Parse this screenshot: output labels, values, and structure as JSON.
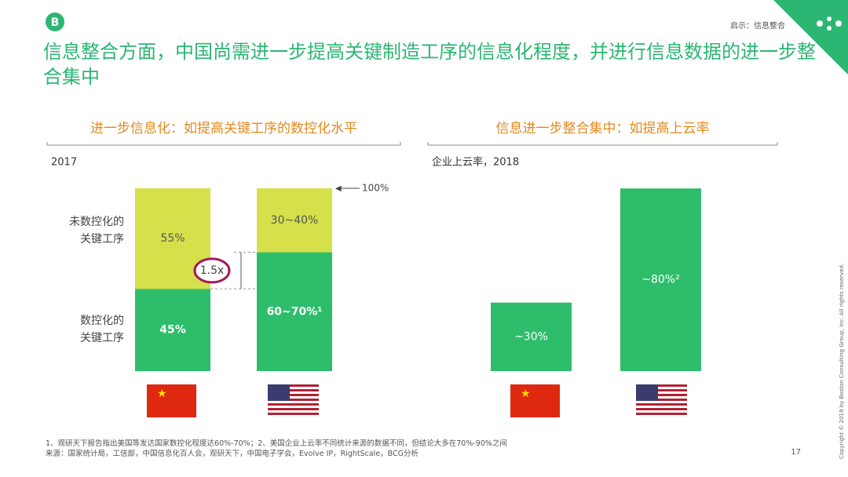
{
  "header": {
    "badge": "B",
    "breadcrumb": "启示：信息整合",
    "title": "信息整合方面，中国尚需进一步提高关键制造工序的信息化程度，并进行信息数据的进一步整合集中"
  },
  "chart_data": [
    {
      "type": "stacked_bar",
      "title": "进一步信息化：如提高关键工序的数控化水平",
      "subtitle": "2017",
      "categories": [
        null,
        null
      ],
      "series": [
        {
          "name": "数控化的\n关键工序",
          "color": "#2ebd6b",
          "values": [
            45,
            65
          ],
          "value_labels": [
            "45%",
            "60~70%¹"
          ]
        },
        {
          "name": "未数控化的\n关键工序",
          "color": "#d6e04a",
          "values": [
            55,
            35
          ],
          "value_labels": [
            "55%",
            "30~40%"
          ]
        }
      ],
      "ylim": [
        0,
        100
      ],
      "annotations": [
        "100%",
        "1.5x"
      ]
    },
    {
      "type": "bar",
      "title": "信息进一步整合集中：如提高上云率",
      "subtitle": "企业上云率，2018",
      "categories": [
        null,
        null
      ],
      "values": [
        30,
        80
      ],
      "value_labels": [
        "~30%",
        "~80%²"
      ],
      "color": "#2ebd6b",
      "ylim": [
        0,
        100
      ]
    }
  ],
  "footer": {
    "notes": [
      "1、观研天下报告指出美国等发达国家数控化程度达60%-70%；2、美国企业上云率不同统计来源的数据不同，但结论大多在70%-90%之间",
      "来源：国家统计局，工信部，中国信息化百人会，观研天下，中国电子学会，Evolve IP，RightScale，BCG分析"
    ],
    "page": "17",
    "copyright": "Copyright © 2019 by Boston Consulting Group, Inc. All rights reserved."
  }
}
